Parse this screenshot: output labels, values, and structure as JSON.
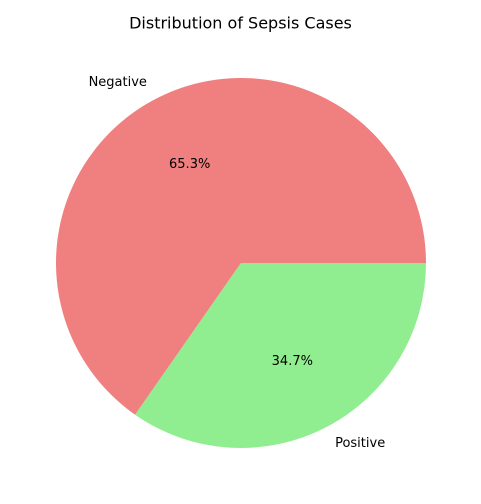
{
  "chart_data": {
    "type": "pie",
    "title": "Distribution of Sepsis Cases",
    "slices": [
      {
        "label": "Negative",
        "value": 65.3,
        "pct_label": "65.3%",
        "color": "#f08080"
      },
      {
        "label": "Positive",
        "value": 34.7,
        "pct_label": "34.7%",
        "color": "#90ee90"
      }
    ]
  }
}
